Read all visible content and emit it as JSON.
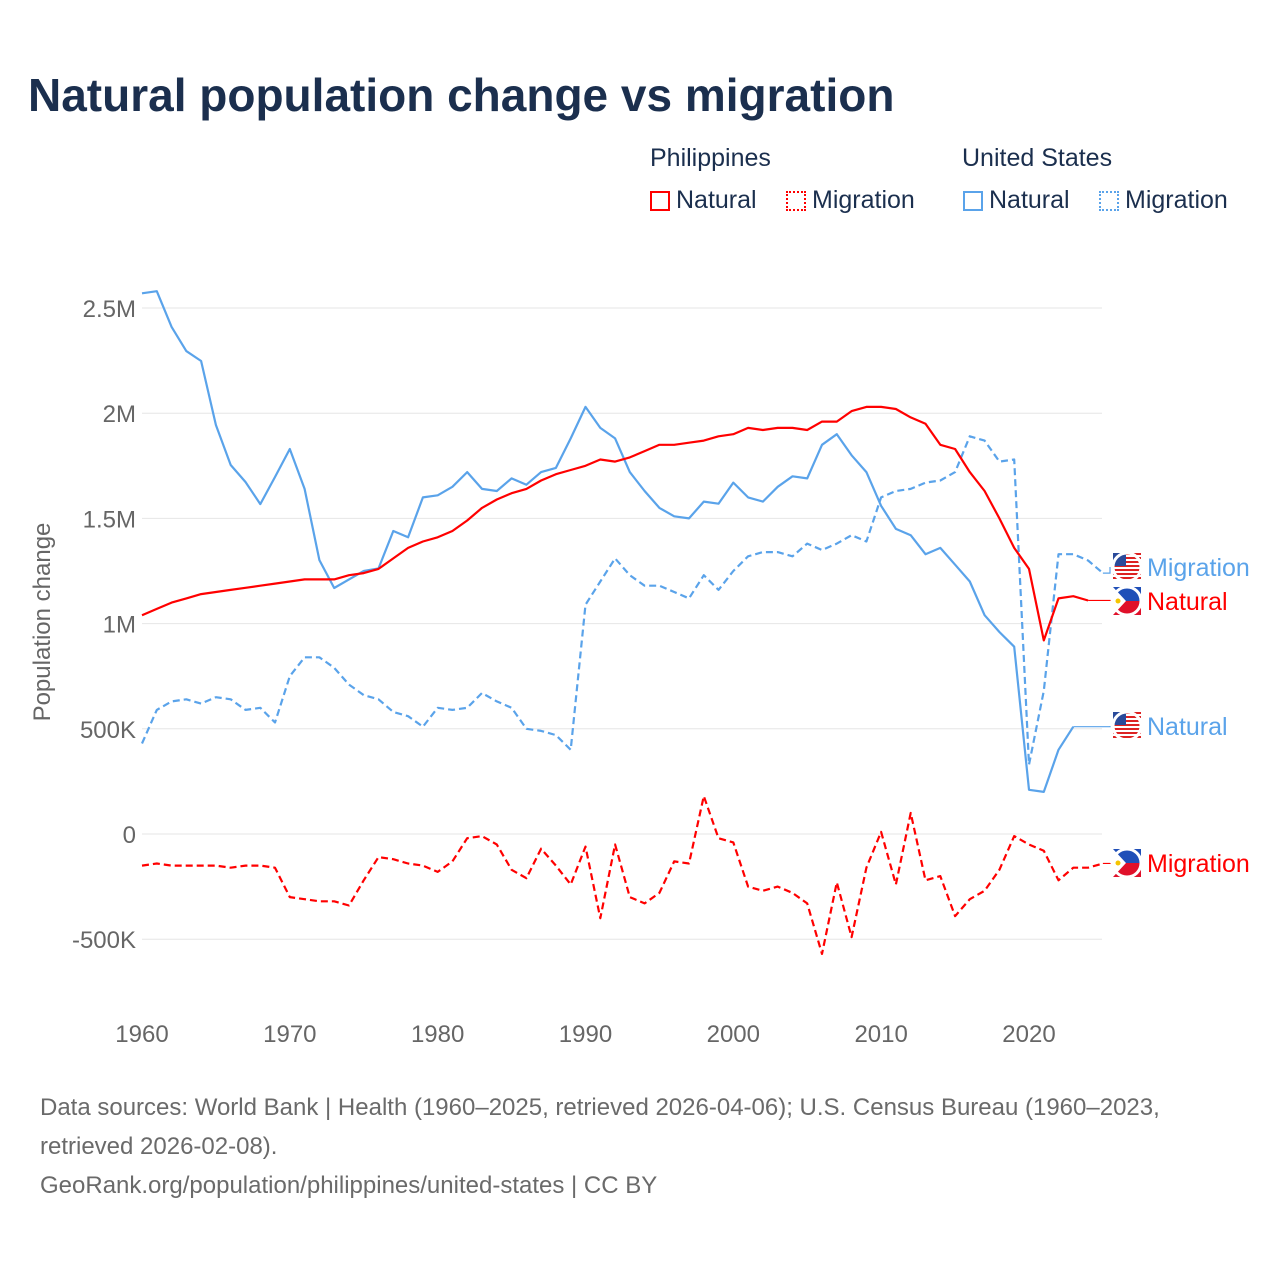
{
  "title": "Natural population change vs migration",
  "legend": {
    "groups": [
      {
        "name": "Philippines",
        "items": [
          {
            "label": "Natural",
            "color": "#ff0000",
            "style": "solid"
          },
          {
            "label": "Migration",
            "color": "#ff0000",
            "style": "dotted"
          }
        ]
      },
      {
        "name": "United States",
        "items": [
          {
            "label": "Natural",
            "color": "#5aa3ea",
            "style": "solid"
          },
          {
            "label": "Migration",
            "color": "#5aa3ea",
            "style": "dotted"
          }
        ]
      }
    ]
  },
  "footer": {
    "sources": "Data sources: World Bank | Health (1960–2025, retrieved 2026-04-06); U.S. Census Bureau (1960–2023, retrieved 2026-02-08).",
    "credit": "GeoRank.org/population/philippines/united-states | CC BY"
  },
  "chart_data": {
    "type": "line",
    "title": "Natural population change vs migration",
    "ylabel": "Population change",
    "xlabel": "",
    "xlim": [
      1960,
      2025
    ],
    "ylim": [
      -600,
      2650
    ],
    "units": "thousands",
    "x_ticks": [
      1960,
      1970,
      1980,
      1990,
      2000,
      2010,
      2020
    ],
    "y_ticks": [
      {
        "v": -500,
        "label": "-500K"
      },
      {
        "v": 0,
        "label": "0"
      },
      {
        "v": 500,
        "label": "500K"
      },
      {
        "v": 1000,
        "label": "1M"
      },
      {
        "v": 1500,
        "label": "1.5M"
      },
      {
        "v": 2000,
        "label": "2M"
      },
      {
        "v": 2500,
        "label": "2.5M"
      }
    ],
    "grid": true,
    "series": [
      {
        "name": "United States Natural",
        "end_label": "Natural",
        "flag": "us",
        "color": "#5aa3ea",
        "dashed": false,
        "start": 1960,
        "values": [
          2570,
          2580,
          2410,
          2295,
          2248,
          1944,
          1754,
          1673,
          1568,
          1697,
          1830,
          1640,
          1302,
          1169,
          1210,
          1250,
          1262,
          1440,
          1410,
          1600,
          1610,
          1650,
          1720,
          1640,
          1630,
          1690,
          1660,
          1720,
          1740,
          1880,
          2030,
          1930,
          1880,
          1720,
          1630,
          1550,
          1510,
          1500,
          1580,
          1570,
          1670,
          1600,
          1580,
          1650,
          1700,
          1690,
          1850,
          1900,
          1800,
          1720,
          1560,
          1450,
          1420,
          1330,
          1360,
          1280,
          1200,
          1040,
          960,
          890,
          210,
          200,
          400,
          510
        ]
      },
      {
        "name": "United States Migration",
        "end_label": "Migration",
        "flag": "us",
        "color": "#5aa3ea",
        "dashed": true,
        "start": 1960,
        "values": [
          430,
          590,
          630,
          640,
          620,
          650,
          640,
          590,
          600,
          530,
          750,
          840,
          840,
          790,
          710,
          660,
          640,
          580,
          560,
          510,
          600,
          590,
          600,
          670,
          630,
          600,
          500,
          490,
          470,
          400,
          1090,
          1200,
          1310,
          1230,
          1180,
          1180,
          1150,
          1120,
          1230,
          1160,
          1250,
          1320,
          1340,
          1340,
          1320,
          1380,
          1350,
          1380,
          1420,
          1390,
          1600,
          1630,
          1640,
          1670,
          1680,
          1720,
          1890,
          1870,
          1770,
          1780,
          330,
          680,
          1330,
          1330,
          1300,
          1240
        ]
      },
      {
        "name": "Philippines Natural",
        "end_label": "Natural",
        "flag": "ph",
        "color": "#ff0000",
        "dashed": false,
        "start": 1960,
        "values": [
          1040,
          1070,
          1100,
          1120,
          1140,
          1150,
          1160,
          1170,
          1180,
          1190,
          1200,
          1210,
          1210,
          1210,
          1230,
          1240,
          1260,
          1310,
          1360,
          1390,
          1410,
          1440,
          1490,
          1550,
          1590,
          1620,
          1640,
          1680,
          1710,
          1730,
          1750,
          1780,
          1770,
          1790,
          1820,
          1850,
          1850,
          1860,
          1870,
          1890,
          1900,
          1930,
          1920,
          1930,
          1930,
          1920,
          1960,
          1960,
          2010,
          2030,
          2030,
          2020,
          1980,
          1950,
          1850,
          1830,
          1720,
          1630,
          1500,
          1360,
          1260,
          920,
          1120,
          1130,
          1110
        ]
      },
      {
        "name": "Philippines Migration",
        "end_label": "Migration",
        "flag": "ph",
        "color": "#ff0000",
        "dashed": true,
        "start": 1960,
        "values": [
          -150,
          -140,
          -150,
          -150,
          -150,
          -150,
          -160,
          -150,
          -150,
          -160,
          -300,
          -310,
          -320,
          -320,
          -340,
          -220,
          -110,
          -120,
          -140,
          -150,
          -180,
          -130,
          -20,
          -10,
          -50,
          -170,
          -210,
          -70,
          -150,
          -240,
          -60,
          -400,
          -50,
          -300,
          -330,
          -280,
          -130,
          -140,
          180,
          -20,
          -40,
          -250,
          -270,
          -250,
          -280,
          -330,
          -570,
          -230,
          -490,
          -160,
          10,
          -240,
          100,
          -220,
          -200,
          -390,
          -310,
          -270,
          -170,
          -10,
          -50,
          -80,
          -220,
          -160,
          -160,
          -140
        ]
      }
    ]
  }
}
